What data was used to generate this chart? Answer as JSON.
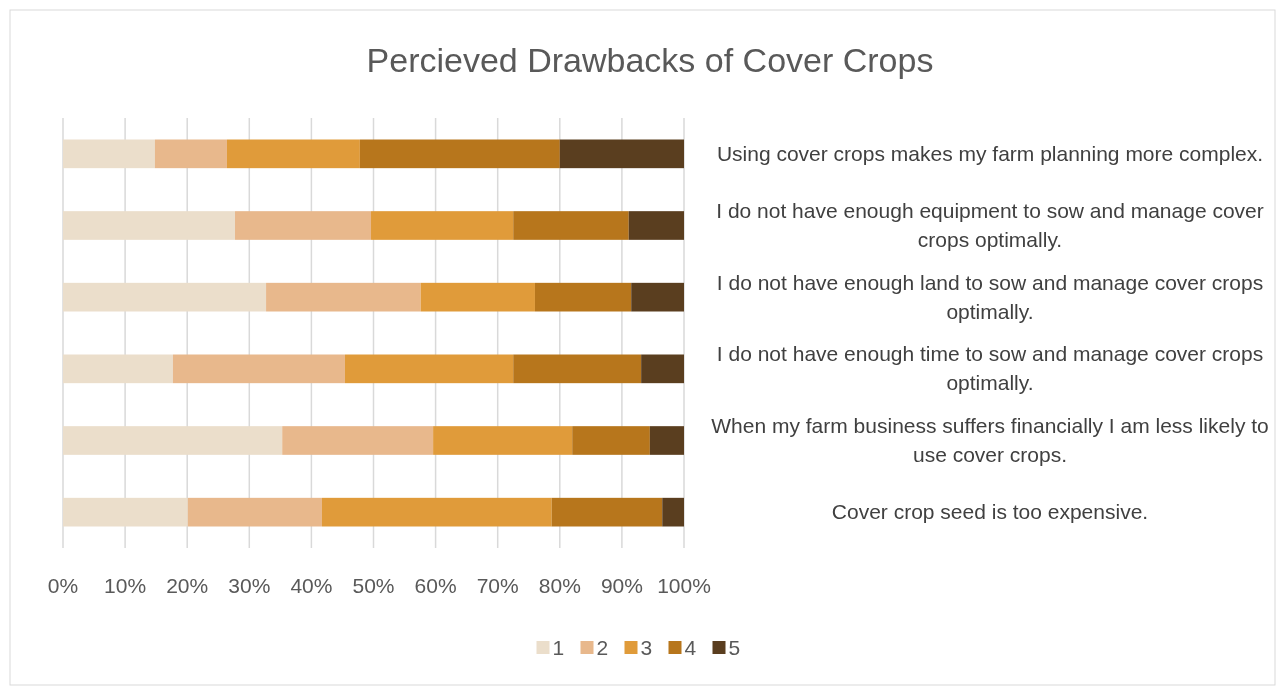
{
  "chart_data": {
    "type": "bar",
    "orientation": "horizontal",
    "stacked": true,
    "title": "Percieved Drawbacks of Cover Crops",
    "categories": [
      "Using cover crops makes my farm planning more complex.",
      "I do not have enough equipment to sow and manage cover crops optimally.",
      "I do not have enough land to sow and manage cover crops optimally.",
      "I do not have enough time to sow and manage cover crops optimally.",
      "When my farm business suffers financially I am less likely to use cover crops.",
      "Cover crop seed is too expensive."
    ],
    "series": [
      {
        "name": "1",
        "color": "#ebdecb",
        "values": [
          14.8,
          27.7,
          32.7,
          17.7,
          35.3,
          20.1
        ]
      },
      {
        "name": "2",
        "color": "#e8b88c",
        "values": [
          11.6,
          21.9,
          24.9,
          27.7,
          24.3,
          21.6
        ]
      },
      {
        "name": "3",
        "color": "#e09b3a",
        "values": [
          21.4,
          22.9,
          18.4,
          27.1,
          22.4,
          37.0
        ]
      },
      {
        "name": "4",
        "color": "#b7761c",
        "values": [
          32.2,
          18.6,
          15.5,
          20.6,
          12.5,
          17.8
        ]
      },
      {
        "name": "5",
        "color": "#5a3e1f",
        "values": [
          20.0,
          8.9,
          8.5,
          6.9,
          5.5,
          3.5
        ]
      }
    ],
    "xlim": [
      0,
      100
    ],
    "xticks": [
      {
        "value": 0,
        "label": "0%"
      },
      {
        "value": 10,
        "label": "10%"
      },
      {
        "value": 20,
        "label": "20%"
      },
      {
        "value": 30,
        "label": "30%"
      },
      {
        "value": 40,
        "label": "40%"
      },
      {
        "value": 50,
        "label": "50%"
      },
      {
        "value": 60,
        "label": "60%"
      },
      {
        "value": 70,
        "label": "70%"
      },
      {
        "value": 80,
        "label": "80%"
      },
      {
        "value": 90,
        "label": "90%"
      },
      {
        "value": 100,
        "label": "100%"
      }
    ],
    "grid": "x",
    "legend": "bottom"
  }
}
